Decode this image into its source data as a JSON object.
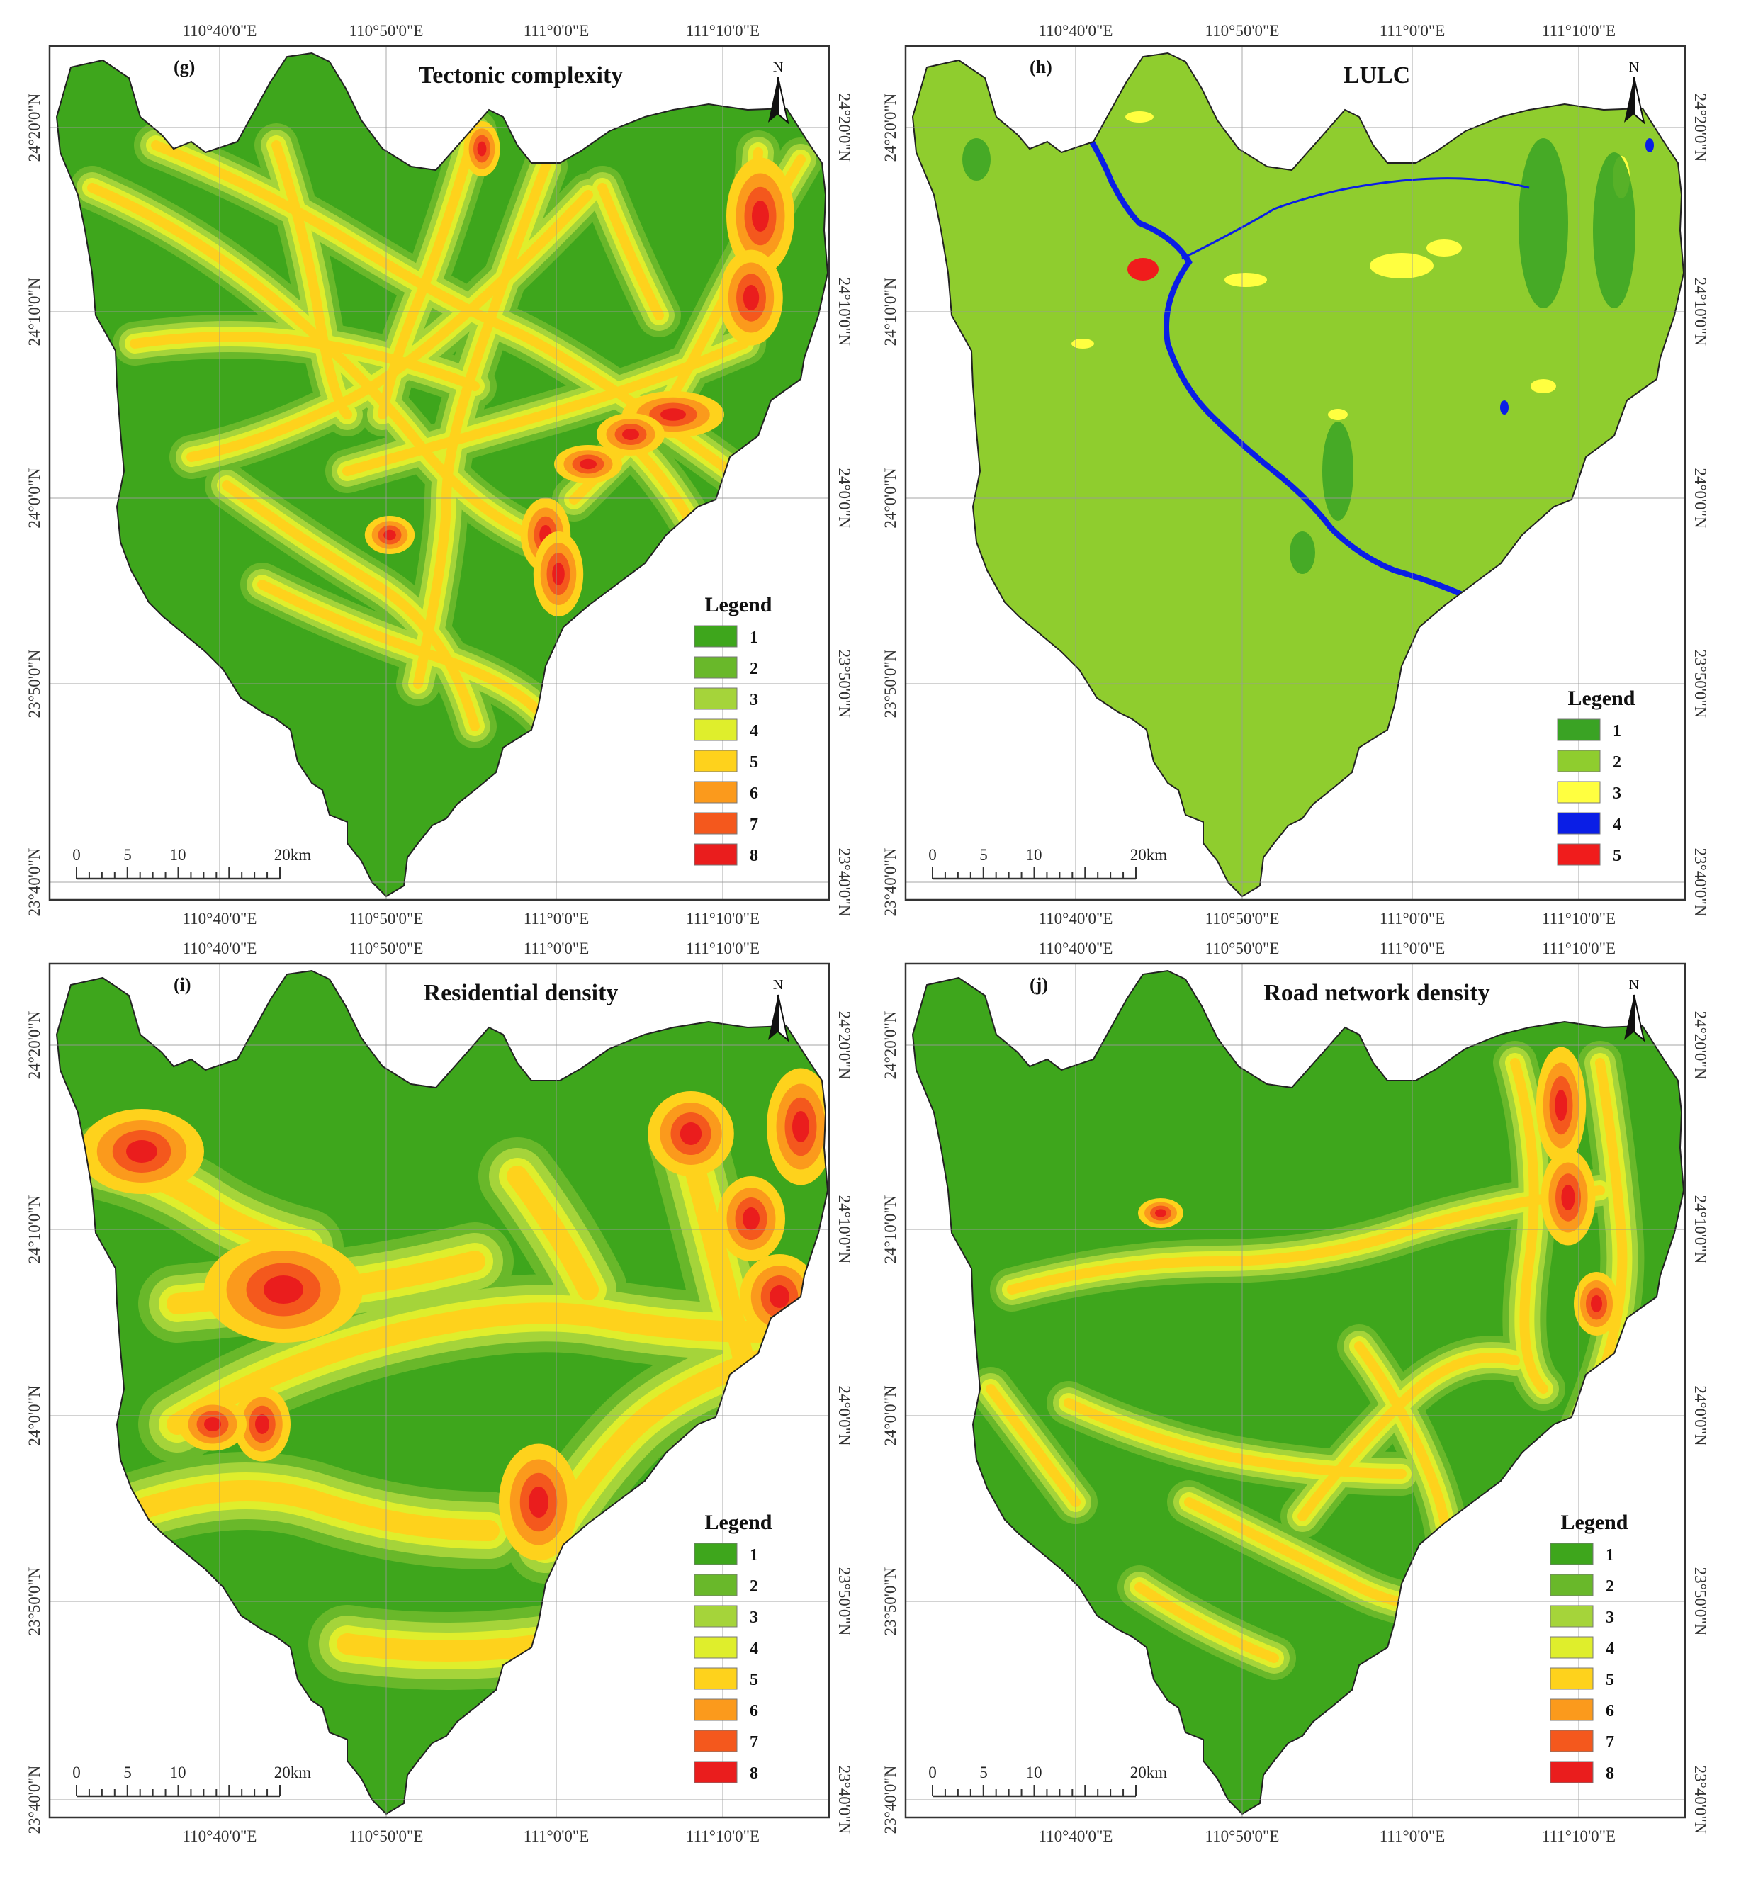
{
  "figure": {
    "panels": [
      {
        "id": "g",
        "label": "(g)",
        "title": "Tectonic complexity",
        "top_ticks": [
          "110°40'0\"E",
          "110°50'0\"E",
          "111°0'0\"E",
          "111°10'0\"E"
        ],
        "bottom_ticks": [
          "110°40'0\"E",
          "110°50'0\"E",
          "111°0'0\"E",
          "111°10'0\"E"
        ],
        "left_ticks": [
          "24°20'0\"N",
          "24°10'0\"N",
          "24°0'0\"N",
          "23°50'0\"N",
          "23°40'0\"N"
        ],
        "right_ticks": [
          "24°20'0\"N",
          "24°10'0\"N",
          "24°0'0\"N",
          "23°50'0\"N",
          "23°40'0\"N"
        ],
        "north_label": "N",
        "scale_labels": [
          "0",
          "5",
          "10",
          "20km"
        ],
        "legend_title": "Legend",
        "legend_items": [
          {
            "label": "1",
            "color": "#3ea61c"
          },
          {
            "label": "2",
            "color": "#69b82a"
          },
          {
            "label": "3",
            "color": "#a5d43a"
          },
          {
            "label": "4",
            "color": "#dfee2c"
          },
          {
            "label": "5",
            "color": "#fed21c"
          },
          {
            "label": "6",
            "color": "#fb9a1c"
          },
          {
            "label": "7",
            "color": "#f4581d"
          },
          {
            "label": "8",
            "color": "#ea1d1d"
          }
        ]
      },
      {
        "id": "h",
        "label": "(h)",
        "title": "LULC",
        "top_ticks": [
          "110°40'0\"E",
          "110°50'0\"E",
          "111°0'0\"E",
          "111°10'0\"E"
        ],
        "bottom_ticks": [
          "110°40'0\"E",
          "110°50'0\"E",
          "111°0'0\"E",
          "111°10'0\"E"
        ],
        "left_ticks": [
          "24°20'0\"N",
          "24°10'0\"N",
          "24°0'0\"N",
          "23°50'0\"N",
          "23°40'0\"N"
        ],
        "right_ticks": [
          "24°20'0\"N",
          "24°10'0\"N",
          "24°0'0\"N",
          "23°50'0\"N",
          "23°40'0\"N"
        ],
        "north_label": "N",
        "scale_labels": [
          "0",
          "5",
          "10",
          "20km"
        ],
        "legend_title": "Legend",
        "legend_items": [
          {
            "label": "1",
            "color": "#3aa324"
          },
          {
            "label": "2",
            "color": "#8fcd2e"
          },
          {
            "label": "3",
            "color": "#ffff40"
          },
          {
            "label": "4",
            "color": "#0a1ee6"
          },
          {
            "label": "5",
            "color": "#f01c1c"
          }
        ]
      },
      {
        "id": "i",
        "label": "(i)",
        "title": "Residential density",
        "top_ticks": [
          "110°40'0\"E",
          "110°50'0\"E",
          "111°0'0\"E",
          "111°10'0\"E"
        ],
        "bottom_ticks": [
          "110°40'0\"E",
          "110°50'0\"E",
          "111°0'0\"E",
          "111°10'0\"E"
        ],
        "left_ticks": [
          "24°20'0\"N",
          "24°10'0\"N",
          "24°0'0\"N",
          "23°50'0\"N",
          "23°40'0\"N"
        ],
        "right_ticks": [
          "24°20'0\"N",
          "24°10'0\"N",
          "24°0'0\"N",
          "23°50'0\"N",
          "23°40'0\"N"
        ],
        "north_label": "N",
        "scale_labels": [
          "0",
          "5",
          "10",
          "20km"
        ],
        "legend_title": "Legend",
        "legend_items": [
          {
            "label": "1",
            "color": "#3ea61c"
          },
          {
            "label": "2",
            "color": "#69b82a"
          },
          {
            "label": "3",
            "color": "#a5d43a"
          },
          {
            "label": "4",
            "color": "#dfee2c"
          },
          {
            "label": "5",
            "color": "#fed21c"
          },
          {
            "label": "6",
            "color": "#fb9a1c"
          },
          {
            "label": "7",
            "color": "#f4581d"
          },
          {
            "label": "8",
            "color": "#ea1d1d"
          }
        ]
      },
      {
        "id": "j",
        "label": "(j)",
        "title": "Road network density",
        "top_ticks": [
          "110°40'0\"E",
          "110°50'0\"E",
          "111°0'0\"E",
          "111°10'0\"E"
        ],
        "bottom_ticks": [
          "110°40'0\"E",
          "110°50'0\"E",
          "111°0'0\"E",
          "111°10'0\"E"
        ],
        "left_ticks": [
          "24°20'0\"N",
          "24°10'0\"N",
          "24°0'0\"N",
          "23°50'0\"N",
          "23°40'0\"N"
        ],
        "right_ticks": [
          "24°20'0\"N",
          "24°10'0\"N",
          "24°0'0\"N",
          "23°50'0\"N",
          "23°40'0\"N"
        ],
        "north_label": "N",
        "scale_labels": [
          "0",
          "5",
          "10",
          "20km"
        ],
        "legend_title": "Legend",
        "legend_items": [
          {
            "label": "1",
            "color": "#3ea61c"
          },
          {
            "label": "2",
            "color": "#69b82a"
          },
          {
            "label": "3",
            "color": "#a5d43a"
          },
          {
            "label": "4",
            "color": "#dfee2c"
          },
          {
            "label": "5",
            "color": "#fed21c"
          },
          {
            "label": "6",
            "color": "#fb9a1c"
          },
          {
            "label": "7",
            "color": "#f4581d"
          },
          {
            "label": "8",
            "color": "#ea1d1d"
          }
        ]
      }
    ]
  }
}
